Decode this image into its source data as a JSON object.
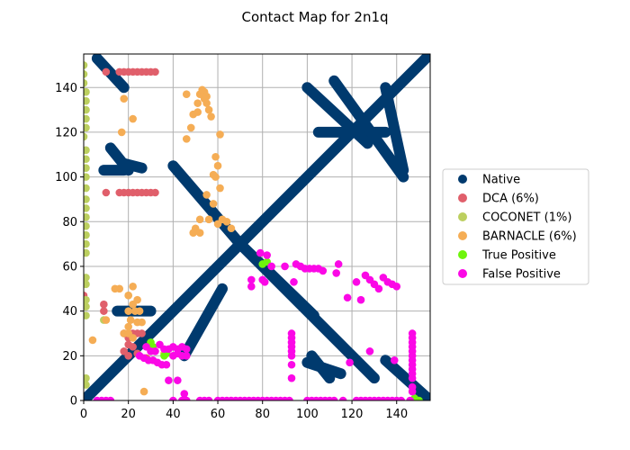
{
  "chart_data": {
    "type": "scatter",
    "title": "Contact Map for 2n1q",
    "xlabel": "",
    "ylabel": "",
    "xlim": [
      0,
      155
    ],
    "ylim": [
      0,
      155
    ],
    "grid": true,
    "xticks": [
      0,
      20,
      40,
      60,
      80,
      100,
      120,
      140
    ],
    "yticks": [
      0,
      20,
      40,
      60,
      80,
      100,
      120,
      140
    ],
    "legend_position": "center-right outside",
    "series": [
      {
        "name": "Native",
        "color": "#003a6e",
        "segments": [
          [
            [
              0,
              0
            ],
            [
              155,
              155
            ]
          ],
          [
            [
              6,
              153
            ],
            [
              18,
              140
            ]
          ],
          [
            [
              9,
              103
            ],
            [
              18,
              103
            ]
          ],
          [
            [
              12,
              113
            ],
            [
              20,
              103
            ]
          ],
          [
            [
              18,
              106
            ],
            [
              26,
              104
            ]
          ],
          [
            [
              15,
              40
            ],
            [
              30,
              40
            ]
          ],
          [
            [
              40,
              105
            ],
            [
              70,
              70
            ]
          ],
          [
            [
              70,
              70
            ],
            [
              103,
              38
            ]
          ],
          [
            [
              70,
              70
            ],
            [
              130,
              10
            ]
          ],
          [
            [
              45,
              20
            ],
            [
              62,
              50
            ]
          ],
          [
            [
              100,
              140
            ],
            [
              127,
              115
            ]
          ],
          [
            [
              105,
              120
            ],
            [
              135,
              120
            ]
          ],
          [
            [
              112,
              143
            ],
            [
              143,
              100
            ]
          ],
          [
            [
              135,
              140
            ],
            [
              143,
              103
            ]
          ],
          [
            [
              100,
              17
            ],
            [
              115,
              12
            ]
          ],
          [
            [
              102,
              20
            ],
            [
              110,
              10
            ]
          ],
          [
            [
              135,
              18
            ],
            [
              155,
              0
            ]
          ]
        ]
      },
      {
        "name": "DCA (6%)",
        "color": "#e05f6b",
        "points": [
          [
            10,
            147
          ],
          [
            16,
            147
          ],
          [
            18,
            147
          ],
          [
            20,
            147
          ],
          [
            22,
            147
          ],
          [
            24,
            147
          ],
          [
            26,
            147
          ],
          [
            28,
            147
          ],
          [
            30,
            147
          ],
          [
            32,
            147
          ],
          [
            10,
            93
          ],
          [
            16,
            93
          ],
          [
            18,
            93
          ],
          [
            20,
            93
          ],
          [
            22,
            93
          ],
          [
            24,
            93
          ],
          [
            26,
            93
          ],
          [
            28,
            93
          ],
          [
            30,
            93
          ],
          [
            32,
            93
          ],
          [
            0,
            47
          ],
          [
            9,
            43
          ],
          [
            9,
            40
          ],
          [
            18,
            30
          ],
          [
            20,
            28
          ],
          [
            22,
            30
          ],
          [
            24,
            30
          ],
          [
            26,
            30
          ],
          [
            20,
            25
          ],
          [
            22,
            24
          ],
          [
            18,
            22
          ],
          [
            20,
            20
          ],
          [
            24,
            21
          ],
          [
            28,
            19
          ]
        ]
      },
      {
        "name": "COCONET (1%)",
        "color": "#bccf5f",
        "points": [
          [
            0,
            150
          ],
          [
            0,
            146
          ],
          [
            0,
            142
          ],
          [
            1,
            138
          ],
          [
            1,
            134
          ],
          [
            1,
            130
          ],
          [
            1,
            126
          ],
          [
            1,
            122
          ],
          [
            0,
            118
          ],
          [
            1,
            112
          ],
          [
            1,
            108
          ],
          [
            1,
            104
          ],
          [
            1,
            100
          ],
          [
            1,
            95
          ],
          [
            1,
            90
          ],
          [
            1,
            86
          ],
          [
            1,
            82
          ],
          [
            1,
            78
          ],
          [
            1,
            74
          ],
          [
            1,
            70
          ],
          [
            1,
            66
          ],
          [
            1,
            55
          ],
          [
            1,
            52
          ],
          [
            1,
            45
          ],
          [
            1,
            42
          ],
          [
            1,
            38
          ],
          [
            1,
            10
          ],
          [
            1,
            7
          ],
          [
            9,
            36
          ],
          [
            20,
            47
          ]
        ]
      },
      {
        "name": "BARNACLE (6%)",
        "color": "#f5ad55",
        "points": [
          [
            18,
            135
          ],
          [
            22,
            126
          ],
          [
            17,
            120
          ],
          [
            46,
            137
          ],
          [
            46,
            117
          ],
          [
            48,
            122
          ],
          [
            49,
            128
          ],
          [
            51,
            129
          ],
          [
            51,
            133
          ],
          [
            52,
            137
          ],
          [
            54,
            138
          ],
          [
            55,
            133
          ],
          [
            56,
            130
          ],
          [
            57,
            127
          ],
          [
            53,
            139
          ],
          [
            55,
            136
          ],
          [
            54,
            135
          ],
          [
            61,
            119
          ],
          [
            59,
            109
          ],
          [
            60,
            105
          ],
          [
            58,
            101
          ],
          [
            59,
            100
          ],
          [
            61,
            95
          ],
          [
            58,
            88
          ],
          [
            55,
            92
          ],
          [
            52,
            81
          ],
          [
            50,
            77
          ],
          [
            52,
            75
          ],
          [
            49,
            75
          ],
          [
            56,
            81
          ],
          [
            60,
            79
          ],
          [
            62,
            81
          ],
          [
            64,
            80
          ],
          [
            66,
            77
          ],
          [
            16,
            50
          ],
          [
            14,
            50
          ],
          [
            22,
            51
          ],
          [
            20,
            47
          ],
          [
            24,
            45
          ],
          [
            22,
            43
          ],
          [
            20,
            40
          ],
          [
            23,
            40
          ],
          [
            25,
            40
          ],
          [
            21,
            36
          ],
          [
            24,
            35
          ],
          [
            26,
            35
          ],
          [
            20,
            33
          ],
          [
            18,
            30
          ],
          [
            20,
            30
          ],
          [
            22,
            28
          ],
          [
            10,
            36
          ],
          [
            4,
            27
          ],
          [
            36,
            21
          ],
          [
            27,
            4
          ]
        ]
      },
      {
        "name": "True Positive",
        "color": "#6ef50c",
        "points": [
          [
            30,
            26
          ],
          [
            31,
            24
          ],
          [
            36,
            20
          ],
          [
            37,
            21
          ],
          [
            80,
            61
          ],
          [
            82,
            62
          ],
          [
            148,
            1
          ],
          [
            150,
            0
          ]
        ]
      },
      {
        "name": "False Positive",
        "color": "#fb08e6",
        "points": [
          [
            6,
            0
          ],
          [
            8,
            0
          ],
          [
            10,
            0
          ],
          [
            12,
            0
          ],
          [
            40,
            0
          ],
          [
            44,
            0
          ],
          [
            46,
            0
          ],
          [
            52,
            0
          ],
          [
            54,
            0
          ],
          [
            56,
            0
          ],
          [
            60,
            0
          ],
          [
            62,
            0
          ],
          [
            64,
            0
          ],
          [
            66,
            0
          ],
          [
            68,
            0
          ],
          [
            70,
            0
          ],
          [
            72,
            0
          ],
          [
            74,
            0
          ],
          [
            76,
            0
          ],
          [
            78,
            0
          ],
          [
            80,
            0
          ],
          [
            82,
            0
          ],
          [
            84,
            0
          ],
          [
            86,
            0
          ],
          [
            88,
            0
          ],
          [
            90,
            0
          ],
          [
            92,
            0
          ],
          [
            100,
            0
          ],
          [
            102,
            0
          ],
          [
            104,
            0
          ],
          [
            106,
            0
          ],
          [
            108,
            0
          ],
          [
            110,
            0
          ],
          [
            112,
            0
          ],
          [
            116,
            0
          ],
          [
            122,
            0
          ],
          [
            124,
            0
          ],
          [
            126,
            0
          ],
          [
            128,
            0
          ],
          [
            130,
            0
          ],
          [
            132,
            0
          ],
          [
            134,
            0
          ],
          [
            136,
            0
          ],
          [
            138,
            0
          ],
          [
            140,
            0
          ],
          [
            142,
            0
          ],
          [
            146,
            0
          ],
          [
            93,
            30
          ],
          [
            93,
            28
          ],
          [
            93,
            26
          ],
          [
            93,
            24
          ],
          [
            93,
            22
          ],
          [
            93,
            20
          ],
          [
            93,
            16
          ],
          [
            93,
            10
          ],
          [
            147,
            30
          ],
          [
            147,
            28
          ],
          [
            147,
            26
          ],
          [
            147,
            24
          ],
          [
            147,
            22
          ],
          [
            147,
            20
          ],
          [
            147,
            18
          ],
          [
            147,
            16
          ],
          [
            147,
            14
          ],
          [
            147,
            12
          ],
          [
            147,
            10
          ],
          [
            147,
            6
          ],
          [
            147,
            4
          ],
          [
            45,
            3
          ],
          [
            38,
            9
          ],
          [
            42,
            9
          ],
          [
            28,
            24
          ],
          [
            30,
            22
          ],
          [
            32,
            22
          ],
          [
            34,
            25
          ],
          [
            36,
            23
          ],
          [
            38,
            23
          ],
          [
            40,
            24
          ],
          [
            42,
            23
          ],
          [
            44,
            24
          ],
          [
            46,
            23
          ],
          [
            25,
            20
          ],
          [
            27,
            19
          ],
          [
            29,
            18
          ],
          [
            31,
            18
          ],
          [
            33,
            17
          ],
          [
            35,
            16
          ],
          [
            37,
            16
          ],
          [
            40,
            20
          ],
          [
            42,
            21
          ],
          [
            44,
            20
          ],
          [
            46,
            20
          ],
          [
            79,
            66
          ],
          [
            82,
            65
          ],
          [
            84,
            60
          ],
          [
            90,
            60
          ],
          [
            95,
            61
          ],
          [
            97,
            60
          ],
          [
            99,
            59
          ],
          [
            101,
            59
          ],
          [
            103,
            59
          ],
          [
            105,
            59
          ],
          [
            107,
            58
          ],
          [
            114,
            61
          ],
          [
            113,
            57
          ],
          [
            118,
            46
          ],
          [
            122,
            53
          ],
          [
            124,
            45
          ],
          [
            126,
            56
          ],
          [
            128,
            54
          ],
          [
            130,
            52
          ],
          [
            132,
            50
          ],
          [
            134,
            55
          ],
          [
            136,
            53
          ],
          [
            138,
            52
          ],
          [
            140,
            51
          ],
          [
            94,
            53
          ],
          [
            75,
            54
          ],
          [
            75,
            51
          ],
          [
            80,
            54
          ],
          [
            81,
            53
          ],
          [
            128,
            22
          ],
          [
            139,
            18
          ],
          [
            119,
            17
          ]
        ]
      }
    ]
  }
}
